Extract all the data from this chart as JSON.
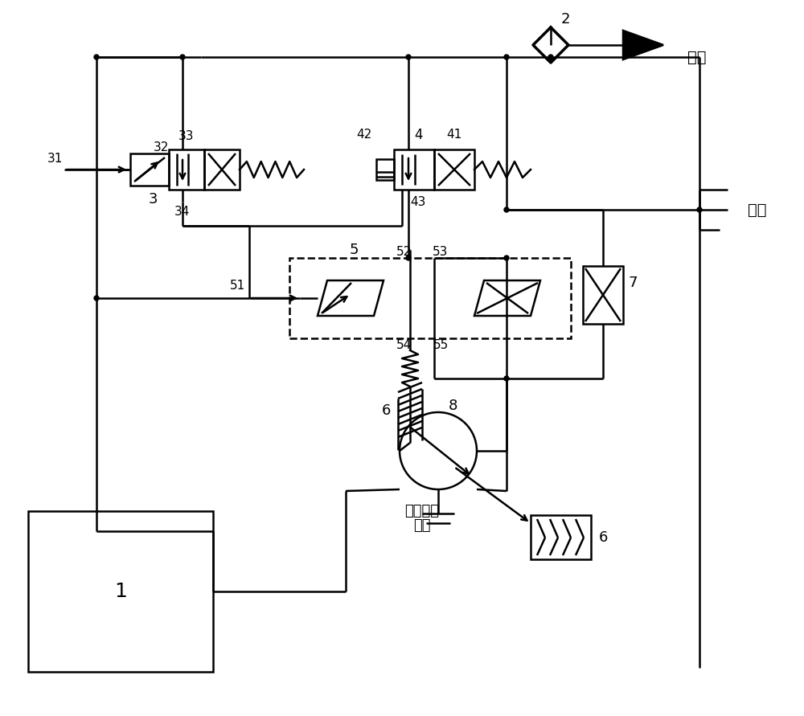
{
  "background": "#ffffff",
  "lc": "#000000",
  "lw": 1.8,
  "figsize": [
    10.0,
    8.91
  ],
  "dpi": 100,
  "supply_text": "供油",
  "return_text": "回油",
  "rotate_line1": "旋转运动",
  "rotate_line2": "机枃",
  "label_31": "31",
  "label_32": "32",
  "label_33": "33",
  "label_34": "34",
  "label_3": "3",
  "label_4": "4",
  "label_41": "41",
  "label_42": "42",
  "label_43": "43",
  "label_5": "5",
  "label_51": "51",
  "label_52": "52",
  "label_53": "53",
  "label_54": "54",
  "label_55": "55",
  "label_6": "6",
  "label_7": "7",
  "label_8": "8",
  "label_2": "2",
  "label_1": "1"
}
